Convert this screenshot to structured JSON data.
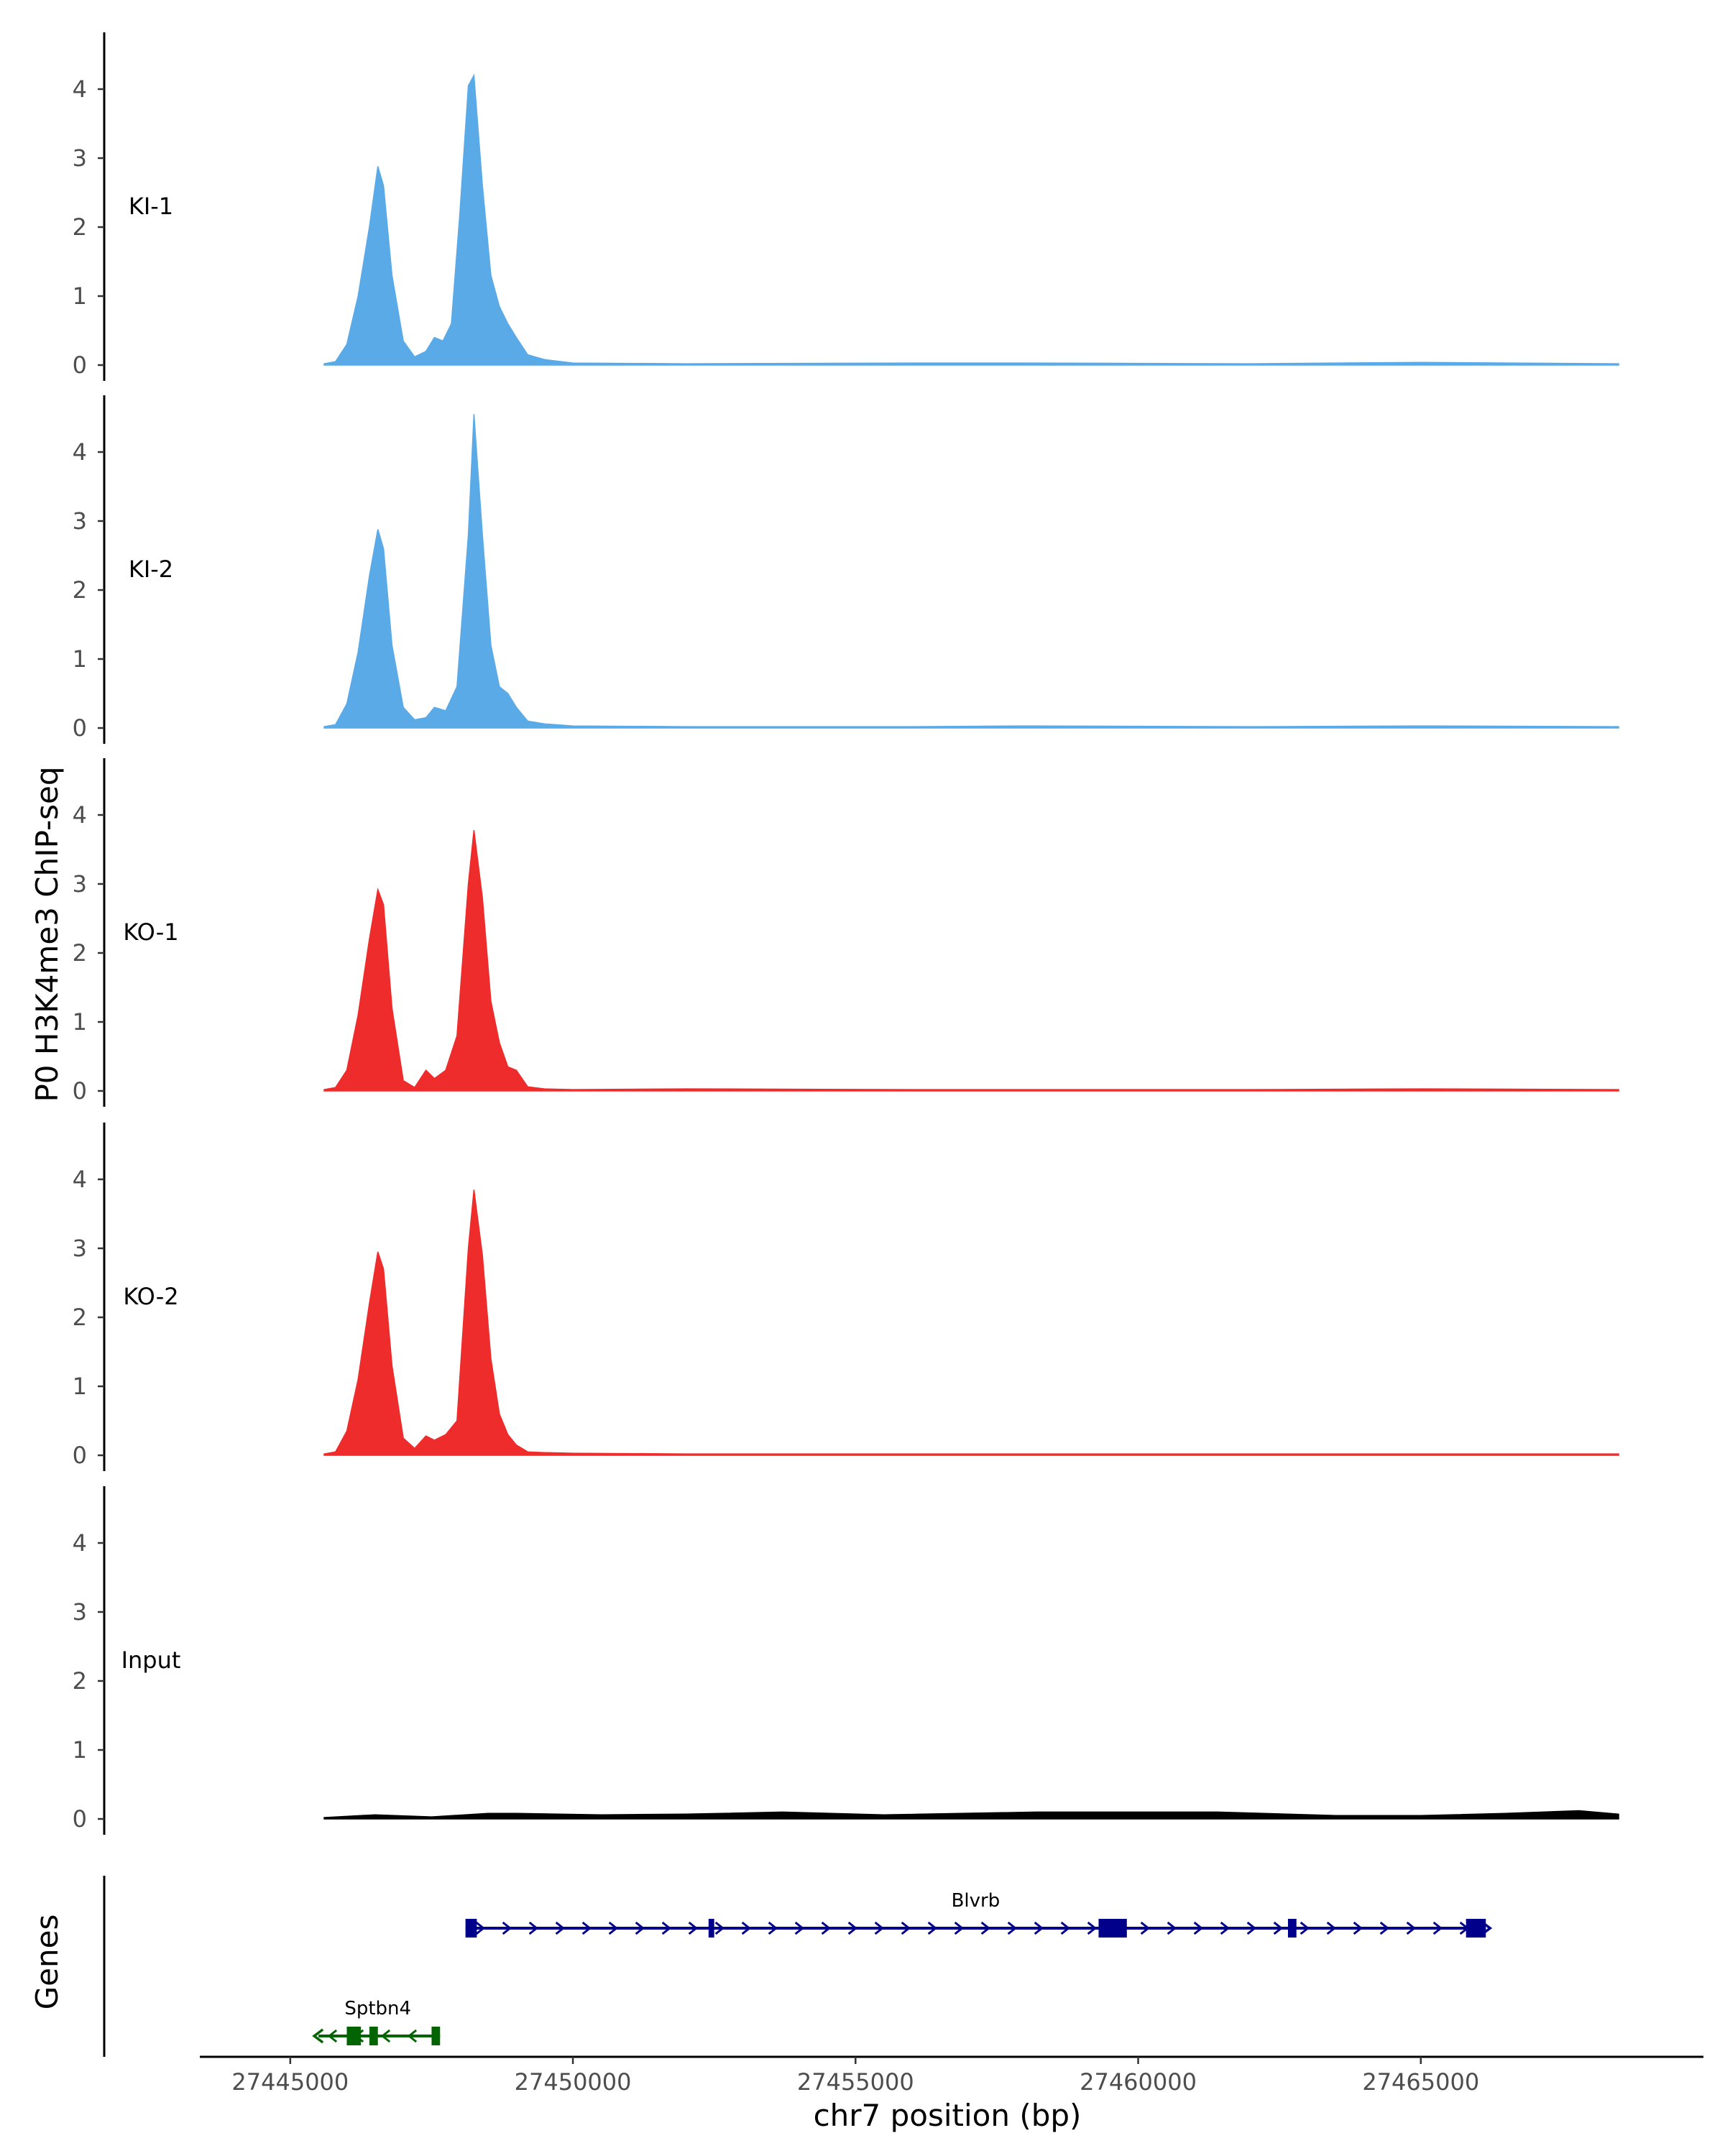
{
  "chart_data": {
    "type": "area",
    "region": "chr7:27445000-27468500",
    "ylabel": "P0 H3K4me3 ChIP-seq",
    "xlabel": "chr7 position (bp)",
    "xlim": [
      27443400,
      27470000
    ],
    "x_ticks": [
      27445000,
      27450000,
      27455000,
      27460000,
      27465000
    ],
    "x_tick_labels": [
      "27445000",
      "27450000",
      "27455000",
      "27460000",
      "27465000"
    ],
    "ylim": [
      0,
      4.6
    ],
    "y_ticks": [
      0,
      1,
      2,
      3,
      4
    ],
    "y_tick_labels": [
      "0",
      "1",
      "2",
      "3",
      "4"
    ],
    "tracks": [
      {
        "name": "KI-1",
        "color": "#5aaae8",
        "x": [
          27445600,
          27445800,
          27446000,
          27446200,
          27446400,
          27446550,
          27446650,
          27446800,
          27447000,
          27447200,
          27447400,
          27447550,
          27447700,
          27447850,
          27448000,
          27448150,
          27448250,
          27448400,
          27448550,
          27448700,
          27448850,
          27449000,
          27449200,
          27449500,
          27450000,
          27452000,
          27456000,
          27458000,
          27462000,
          27465000,
          27468500
        ],
        "values": [
          0.02,
          0.05,
          0.3,
          1.0,
          2.0,
          2.88,
          2.6,
          1.3,
          0.35,
          0.12,
          0.2,
          0.4,
          0.35,
          0.6,
          2.2,
          4.05,
          4.2,
          2.6,
          1.3,
          0.85,
          0.6,
          0.4,
          0.15,
          0.08,
          0.03,
          0.02,
          0.03,
          0.03,
          0.02,
          0.04,
          0.02
        ]
      },
      {
        "name": "KI-2",
        "color": "#5aaae8",
        "x": [
          27445600,
          27445800,
          27446000,
          27446200,
          27446400,
          27446550,
          27446650,
          27446800,
          27447000,
          27447200,
          27447400,
          27447550,
          27447750,
          27447950,
          27448150,
          27448250,
          27448400,
          27448550,
          27448700,
          27448850,
          27449000,
          27449200,
          27449500,
          27450000,
          27452000,
          27456000,
          27458000,
          27462000,
          27465000,
          27468500
        ],
        "values": [
          0.02,
          0.05,
          0.35,
          1.1,
          2.2,
          2.88,
          2.6,
          1.2,
          0.3,
          0.12,
          0.15,
          0.3,
          0.25,
          0.6,
          2.8,
          4.55,
          2.8,
          1.2,
          0.6,
          0.5,
          0.3,
          0.1,
          0.06,
          0.03,
          0.02,
          0.02,
          0.03,
          0.02,
          0.03,
          0.02
        ]
      },
      {
        "name": "KO-1",
        "color": "#ee2c2c",
        "x": [
          27445600,
          27445800,
          27446000,
          27446200,
          27446400,
          27446550,
          27446650,
          27446800,
          27447000,
          27447200,
          27447400,
          27447550,
          27447750,
          27447950,
          27448150,
          27448250,
          27448400,
          27448550,
          27448700,
          27448850,
          27449000,
          27449200,
          27449500,
          27450000,
          27452000,
          27456000,
          27458000,
          27462000,
          27465000,
          27468500
        ],
        "values": [
          0.02,
          0.05,
          0.3,
          1.1,
          2.2,
          2.92,
          2.7,
          1.2,
          0.15,
          0.05,
          0.3,
          0.18,
          0.3,
          0.8,
          3.0,
          3.78,
          2.8,
          1.3,
          0.7,
          0.35,
          0.3,
          0.06,
          0.03,
          0.02,
          0.03,
          0.02,
          0.02,
          0.02,
          0.03,
          0.02
        ]
      },
      {
        "name": "KO-2",
        "color": "#ee2c2c",
        "x": [
          27445600,
          27445800,
          27446000,
          27446200,
          27446400,
          27446550,
          27446650,
          27446800,
          27447000,
          27447200,
          27447400,
          27447550,
          27447750,
          27447950,
          27448150,
          27448250,
          27448400,
          27448550,
          27448700,
          27448850,
          27449000,
          27449200,
          27449500,
          27450000,
          27452000,
          27456000,
          27458000,
          27462000,
          27465000,
          27468500
        ],
        "values": [
          0.02,
          0.05,
          0.35,
          1.1,
          2.2,
          2.95,
          2.7,
          1.3,
          0.25,
          0.1,
          0.28,
          0.22,
          0.3,
          0.5,
          3.0,
          3.85,
          2.9,
          1.4,
          0.6,
          0.3,
          0.15,
          0.05,
          0.04,
          0.03,
          0.02,
          0.02,
          0.02,
          0.02,
          0.02,
          0.02
        ]
      },
      {
        "name": "Input",
        "color": "#000000",
        "x": [
          27445600,
          27446500,
          27447500,
          27448500,
          27449000,
          27450500,
          27452000,
          27453700,
          27455500,
          27458200,
          27461400,
          27463500,
          27465000,
          27466500,
          27467800,
          27468500
        ],
        "values": [
          0.02,
          0.06,
          0.03,
          0.08,
          0.08,
          0.06,
          0.07,
          0.1,
          0.06,
          0.1,
          0.1,
          0.05,
          0.05,
          0.08,
          0.12,
          0.07
        ]
      }
    ],
    "genes": [
      {
        "name": "Blvrb",
        "strand": "+",
        "color": "#00008b",
        "start": 27448100,
        "end": 27466150,
        "exons": [
          [
            27448100,
            27448300
          ],
          [
            27452400,
            27452500
          ],
          [
            27459300,
            27459800
          ],
          [
            27462650,
            27462800
          ],
          [
            27465800,
            27466150
          ]
        ]
      },
      {
        "name": "Sptbn4",
        "strand": "-",
        "color": "#006400",
        "start": 27445500,
        "end": 27447650,
        "exons": [
          [
            27446000,
            27446250
          ],
          [
            27446400,
            27446550
          ],
          [
            27447500,
            27447650
          ]
        ]
      }
    ],
    "genes_label": "Genes"
  }
}
